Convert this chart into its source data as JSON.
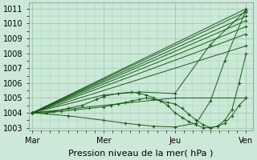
{
  "background_color": "#cce8d8",
  "grid_color": "#99ccaa",
  "line_color": "#1a5c1a",
  "marker": "+",
  "marker_size": 3,
  "xlabel": "Pression niveau de la mer( hPa )",
  "xlabel_fontsize": 8,
  "tick_fontsize": 7,
  "ylim": [
    1002.8,
    1011.4
  ],
  "yticks": [
    1003,
    1004,
    1005,
    1006,
    1007,
    1008,
    1009,
    1010,
    1011
  ],
  "xtick_labels": [
    "Mar",
    "Mer",
    "Jeu",
    "Ven"
  ],
  "xtick_positions": [
    0.0,
    1.0,
    2.0,
    3.0
  ],
  "series": [
    {
      "x": [
        0,
        3.0
      ],
      "y": [
        1004.0,
        1011.0
      ]
    },
    {
      "x": [
        0,
        3.0
      ],
      "y": [
        1004.0,
        1010.8
      ]
    },
    {
      "x": [
        0,
        3.0
      ],
      "y": [
        1004.0,
        1010.5
      ]
    },
    {
      "x": [
        0,
        3.0
      ],
      "y": [
        1004.0,
        1010.2
      ]
    },
    {
      "x": [
        0,
        3.0
      ],
      "y": [
        1004.0,
        1009.8
      ]
    },
    {
      "x": [
        0,
        3.0
      ],
      "y": [
        1004.0,
        1009.3
      ]
    },
    {
      "x": [
        0,
        3.0
      ],
      "y": [
        1004.0,
        1008.5
      ]
    },
    {
      "x": [
        0,
        2.0,
        3.0
      ],
      "y": [
        1004.0,
        1005.0,
        1005.0
      ]
    },
    {
      "x": [
        0,
        1.0,
        1.5,
        2.0,
        2.5,
        3.0
      ],
      "y": [
        1004.0,
        1005.2,
        1005.4,
        1005.3,
        1008.6,
        1010.9
      ]
    },
    {
      "x": [
        0,
        0.5,
        1.0,
        1.3,
        1.5,
        1.7,
        2.0,
        2.3,
        2.5,
        2.7,
        3.0
      ],
      "y": [
        1004.0,
        1003.8,
        1003.5,
        1003.3,
        1003.2,
        1003.1,
        1003.05,
        1003.3,
        1004.8,
        1007.5,
        1010.9
      ]
    },
    {
      "x": [
        0,
        0.3,
        0.5,
        0.7,
        0.9,
        1.0,
        1.2,
        1.4,
        1.5,
        1.6,
        1.7,
        1.8,
        1.9,
        2.0,
        2.1,
        2.2,
        2.3,
        2.4,
        2.5,
        2.6,
        2.7,
        2.8,
        2.9,
        3.0
      ],
      "y": [
        1004.0,
        1004.1,
        1004.3,
        1004.5,
        1004.9,
        1005.1,
        1005.3,
        1005.4,
        1005.3,
        1005.2,
        1005.0,
        1004.8,
        1004.5,
        1004.0,
        1003.7,
        1003.4,
        1003.2,
        1003.0,
        1003.0,
        1003.1,
        1003.3,
        1003.8,
        1004.5,
        1005.0
      ]
    },
    {
      "x": [
        0,
        0.2,
        0.4,
        0.6,
        0.8,
        1.0,
        1.1,
        1.2,
        1.3,
        1.4,
        1.5,
        1.6,
        1.7,
        1.8,
        1.9,
        2.0,
        2.1,
        2.2,
        2.3,
        2.4,
        2.5,
        2.6,
        2.7,
        2.8,
        2.9,
        3.0
      ],
      "y": [
        1004.0,
        1004.0,
        1004.1,
        1004.2,
        1004.3,
        1004.4,
        1004.5,
        1004.6,
        1004.7,
        1004.8,
        1004.9,
        1005.0,
        1004.9,
        1004.8,
        1004.7,
        1004.6,
        1004.3,
        1003.9,
        1003.5,
        1003.2,
        1003.0,
        1003.1,
        1003.5,
        1004.2,
        1006.0,
        1008.0
      ]
    }
  ],
  "n_xminor": 24,
  "n_yminor": 1
}
